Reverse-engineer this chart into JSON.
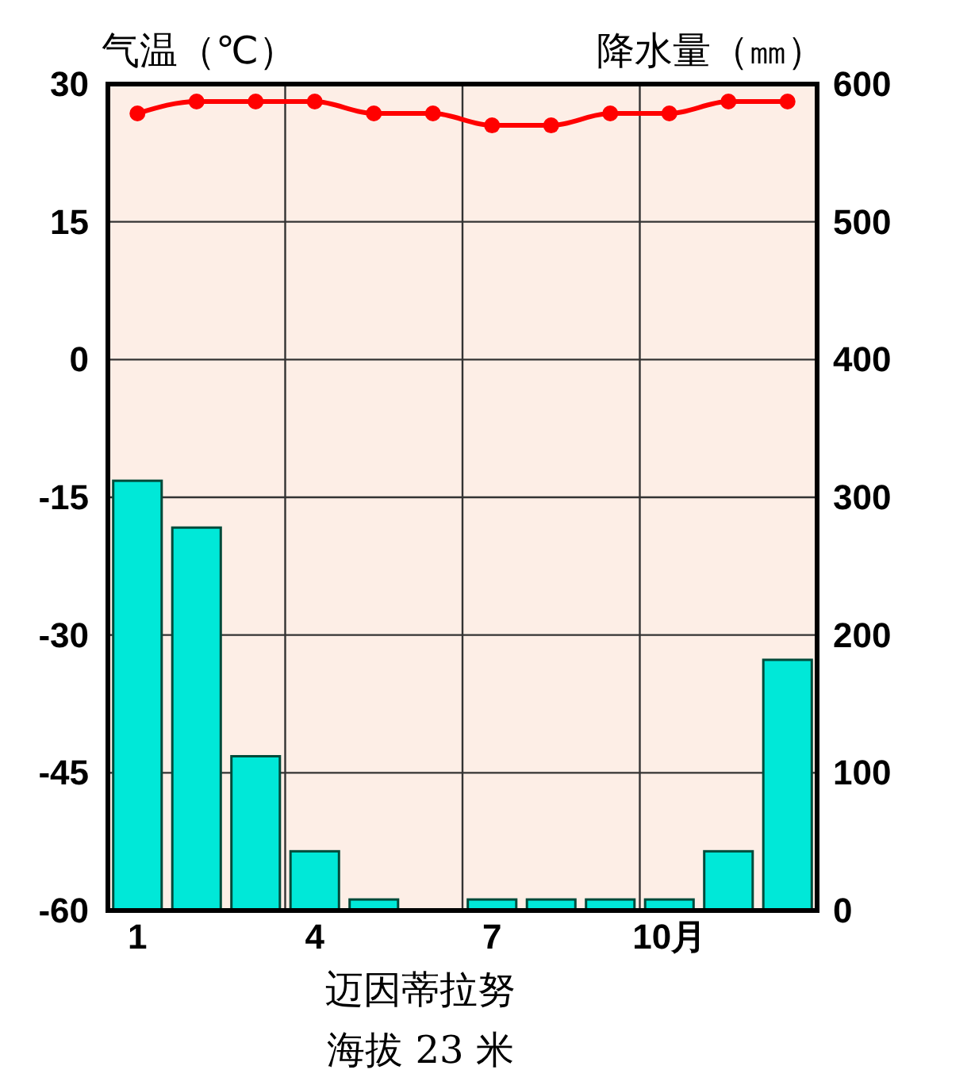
{
  "chart_data": {
    "type": "bar",
    "title": "迈因蒂拉努",
    "subtitle": "海拔 23 米",
    "ylabel": "气温（℃）",
    "y2label": "降水量（㎜）",
    "categories": [
      "1",
      null,
      null,
      "4",
      null,
      null,
      "7",
      null,
      null,
      "10月",
      null,
      null
    ],
    "series": [
      {
        "axis": "y2",
        "color": "#00e8d8",
        "values": [
          312,
          278,
          112,
          43,
          8,
          0,
          8,
          8,
          8,
          8,
          43,
          182
        ]
      },
      {
        "type": "line",
        "axis": "y",
        "color": "#ff0000",
        "marker": "circle",
        "values": [
          26.8,
          28.1,
          28.1,
          28.1,
          26.8,
          26.8,
          25.5,
          25.5,
          26.8,
          26.8,
          28.1,
          28.1
        ]
      }
    ],
    "ylim": [
      -60,
      30
    ],
    "yticks": [
      -60,
      -45,
      -30,
      -15,
      0,
      15,
      30
    ],
    "y2lim": [
      0,
      600
    ],
    "y2ticks": [
      0,
      100,
      200,
      300,
      400,
      500,
      600
    ],
    "grid": true
  }
}
